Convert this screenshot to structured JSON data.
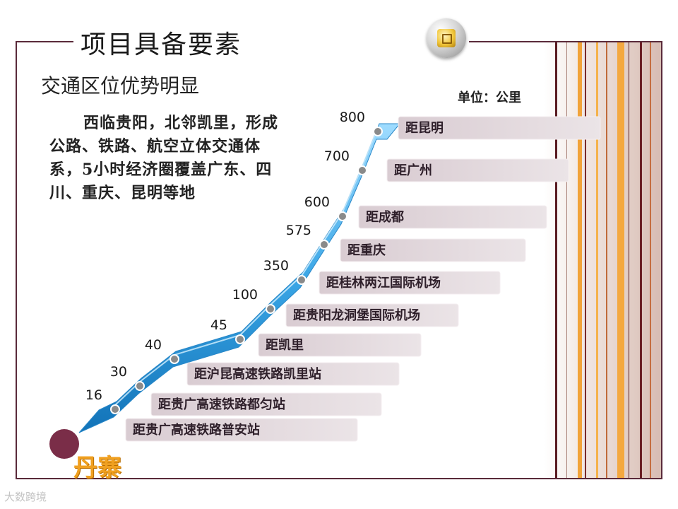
{
  "header": {
    "title": "项目具备要素"
  },
  "subtitle": "交通区位优势明显",
  "unit_label": "单位：公里",
  "description": "西临贵阳，北邻凯里，形成公路、铁路、航空立体交通体系，5小时经济圈覆盖广东、四川、重庆、昆明等地",
  "logo": {
    "text": "丹寨"
  },
  "watermark": "大数跨境",
  "colors": {
    "frame": "#5a2a3a",
    "ribbon": "#3aa6e6",
    "label_box": "#e3dade",
    "logo_circle": "#7a2d48",
    "logo_text": "#f0a020"
  },
  "icons": {
    "badge": "square-coin-icon"
  },
  "chart_data": {
    "type": "line",
    "title": "",
    "xlabel": "",
    "ylabel": "",
    "unit": "公里",
    "series": [
      {
        "points": [
          {
            "label": "距贵广高速铁路普安站",
            "value": 16
          },
          {
            "label": "距贵广高速铁路都匀站",
            "value": 30
          },
          {
            "label": "距沪昆高速铁路凯里站",
            "value": 40
          },
          {
            "label": "距凯里",
            "value": 45
          },
          {
            "label": "距贵阳龙洞堡国际机场",
            "value": 100
          },
          {
            "label": "距桂林两江国际机场",
            "value": 350
          },
          {
            "label": "距重庆",
            "value": 575
          },
          {
            "label": "距成都",
            "value": 600
          },
          {
            "label": "距广州",
            "value": 700
          },
          {
            "label": "距昆明",
            "value": 800
          }
        ]
      }
    ]
  }
}
